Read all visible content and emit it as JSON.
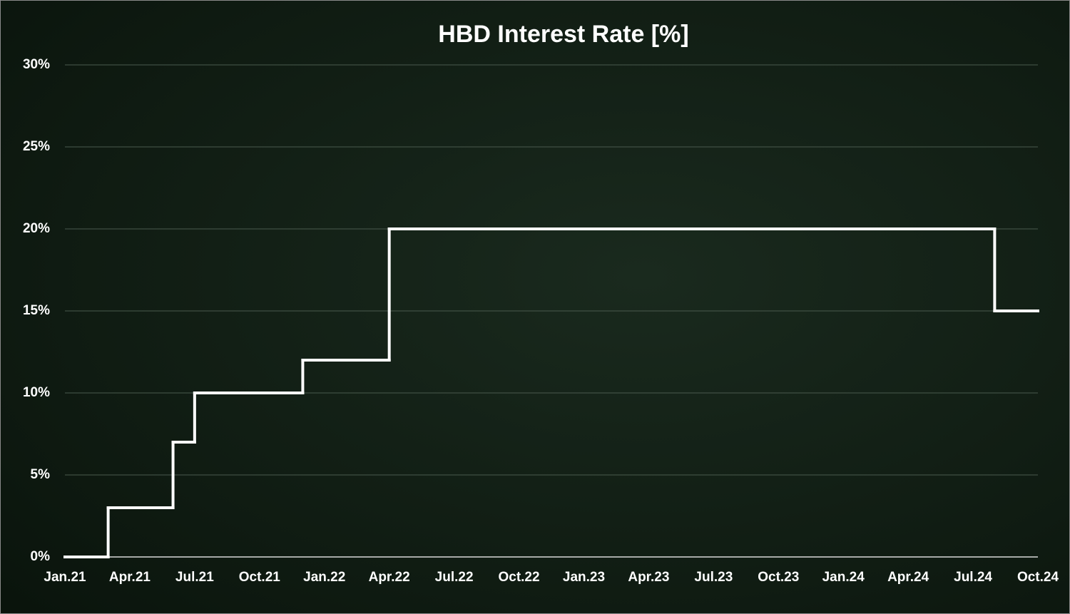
{
  "chart_data": {
    "type": "step",
    "title": "HBD Interest Rate [%]",
    "x": [
      "2021-01",
      "2021-03",
      "2021-06",
      "2021-07",
      "2021-12",
      "2022-04",
      "2024-08"
    ],
    "series": [
      {
        "values": [
          0,
          3,
          7,
          10,
          12,
          20,
          15
        ],
        "color": "#ffffff"
      }
    ],
    "xlim": [
      "2021-01",
      "2024-10"
    ],
    "xticks": [
      {
        "value": "2021-01",
        "label": "Jan.21"
      },
      {
        "value": "2021-04",
        "label": "Apr.21"
      },
      {
        "value": "2021-07",
        "label": "Jul.21"
      },
      {
        "value": "2021-10",
        "label": "Oct.21"
      },
      {
        "value": "2022-01",
        "label": "Jan.22"
      },
      {
        "value": "2022-04",
        "label": "Apr.22"
      },
      {
        "value": "2022-07",
        "label": "Jul.22"
      },
      {
        "value": "2022-10",
        "label": "Oct.22"
      },
      {
        "value": "2023-01",
        "label": "Jan.23"
      },
      {
        "value": "2023-04",
        "label": "Apr.23"
      },
      {
        "value": "2023-07",
        "label": "Jul.23"
      },
      {
        "value": "2023-10",
        "label": "Oct.23"
      },
      {
        "value": "2024-01",
        "label": "Jan.24"
      },
      {
        "value": "2024-04",
        "label": "Apr.24"
      },
      {
        "value": "2024-07",
        "label": "Jul.24"
      },
      {
        "value": "2024-10",
        "label": "Oct.24"
      }
    ],
    "ylim": [
      0,
      30
    ],
    "yticks": [
      {
        "value": 0,
        "label": "0%"
      },
      {
        "value": 5,
        "label": "5%"
      },
      {
        "value": 10,
        "label": "10%"
      },
      {
        "value": 15,
        "label": "15%"
      },
      {
        "value": 20,
        "label": "20%"
      },
      {
        "value": 25,
        "label": "25%"
      },
      {
        "value": 30,
        "label": "30%"
      }
    ],
    "grid": true
  }
}
